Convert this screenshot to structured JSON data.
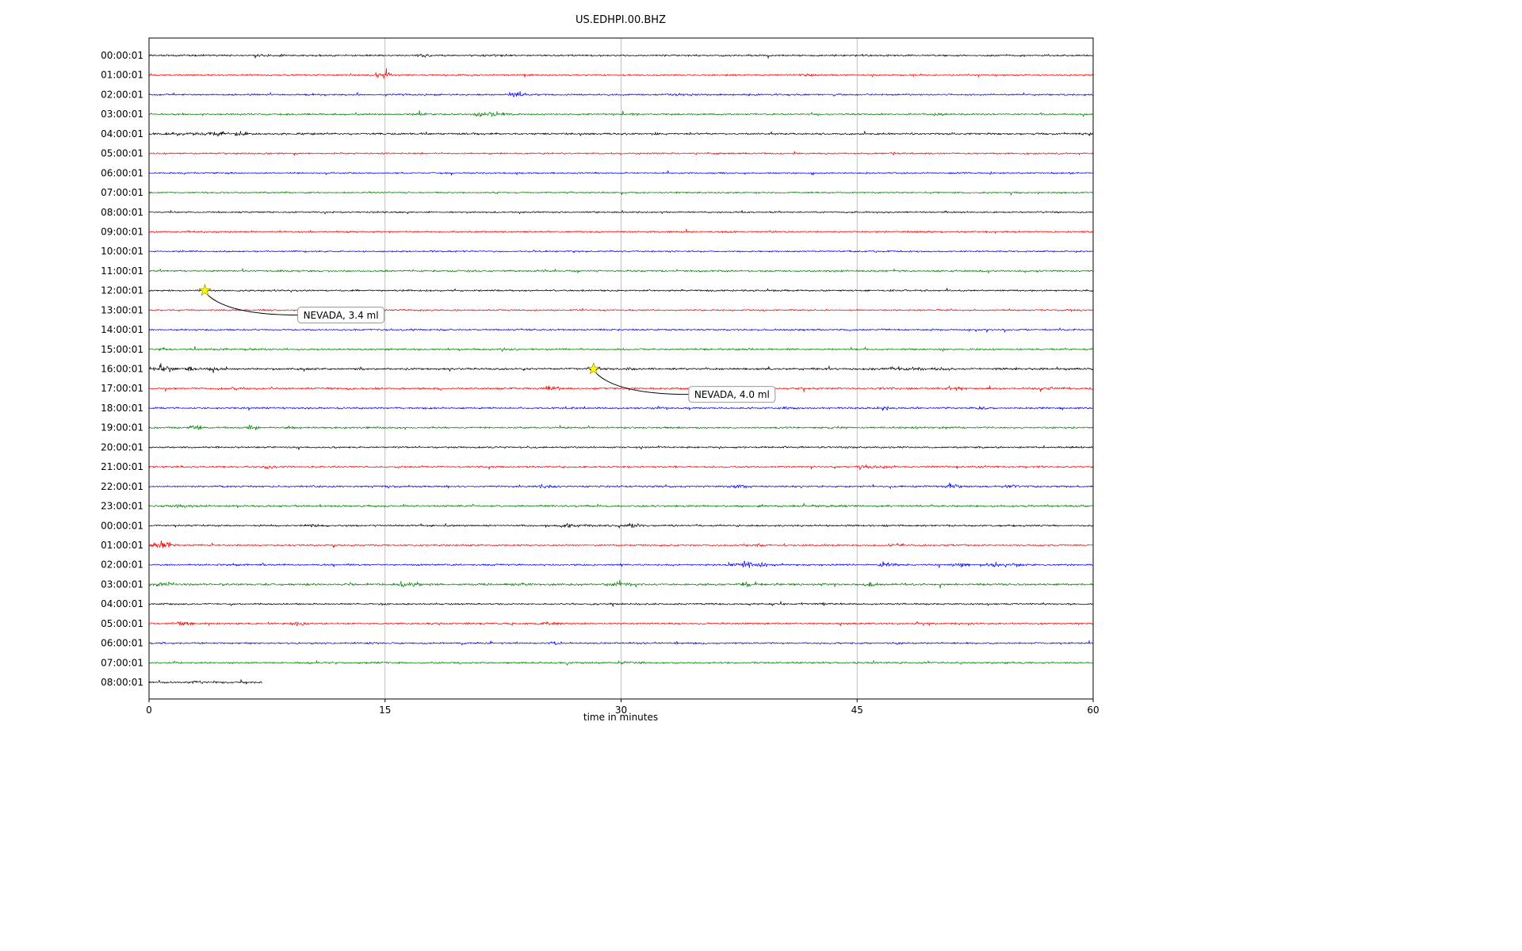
{
  "title": "US.EDHPI.00.BHZ",
  "xlabel": "time in minutes",
  "colors": {
    "grid": "#b0b0b0",
    "frame": "#000000",
    "star_fill": "#ffff00",
    "star_edge": "#808000",
    "annotation_box_border": "#999999",
    "annotation_box_fill": "#ffffff",
    "trace_cycle": [
      "#000000",
      "#ff0000",
      "#0000ff",
      "#008000"
    ]
  },
  "chart_data": {
    "type": "line",
    "subtype": "helicorder-dayplot",
    "title": "US.EDHPI.00.BHZ",
    "xlabel": "time in minutes",
    "x_range": [
      0,
      60
    ],
    "x_ticks": [
      "0",
      "15",
      "30",
      "45",
      "60"
    ],
    "x_tick_values": [
      0,
      15,
      30,
      45,
      60
    ],
    "grid": "vertical-only",
    "minutes_per_row": 60,
    "rows": [
      {
        "label": "00:00:01",
        "color": "#000000",
        "amp": 1.6,
        "events": [
          {
            "x": 7.5,
            "a": 1.2,
            "w": 0.6
          },
          {
            "x": 17.2,
            "a": 2.2,
            "w": 0.35
          },
          {
            "x": 22.5,
            "a": 1.0,
            "w": 0.5
          },
          {
            "x": 45.6,
            "a": 1.2,
            "w": 0.3
          }
        ]
      },
      {
        "label": "01:00:01",
        "color": "#ff0000",
        "amp": 1.5,
        "events": [
          {
            "x": 14.8,
            "a": 4.5,
            "w": 0.45
          },
          {
            "x": 41.8,
            "a": 1.5,
            "w": 0.25
          }
        ]
      },
      {
        "label": "02:00:01",
        "color": "#0000ff",
        "amp": 1.5,
        "events": [
          {
            "x": 23.3,
            "a": 4.0,
            "w": 0.4
          },
          {
            "x": 33.5,
            "a": 1.2,
            "w": 0.3
          }
        ]
      },
      {
        "label": "03:00:01",
        "color": "#008000",
        "amp": 1.5,
        "events": [
          {
            "x": 17.4,
            "a": 1.6,
            "w": 0.25
          },
          {
            "x": 21.6,
            "a": 3.8,
            "w": 0.6
          },
          {
            "x": 30.8,
            "a": 1.2,
            "w": 0.3
          },
          {
            "x": 50.2,
            "a": 1.8,
            "w": 0.25
          }
        ]
      },
      {
        "label": "04:00:01",
        "color": "#000000",
        "amp": 1.7,
        "events": [
          {
            "x": 2.5,
            "a": 1.5,
            "w": 1.2
          },
          {
            "x": 4.4,
            "a": 3.5,
            "w": 0.3
          },
          {
            "x": 5.9,
            "a": 3.2,
            "w": 0.3
          },
          {
            "x": 34.5,
            "a": 1.0,
            "w": 0.4
          }
        ]
      },
      {
        "label": "05:00:01",
        "color": "#ff0000",
        "amp": 1.4,
        "events": [
          {
            "x": 47.3,
            "a": 1.2,
            "w": 0.3
          }
        ]
      },
      {
        "label": "06:00:01",
        "color": "#0000ff",
        "amp": 1.4,
        "events": []
      },
      {
        "label": "07:00:01",
        "color": "#008000",
        "amp": 1.4,
        "events": []
      },
      {
        "label": "08:00:01",
        "color": "#000000",
        "amp": 1.4,
        "events": []
      },
      {
        "label": "09:00:01",
        "color": "#ff0000",
        "amp": 1.4,
        "events": [
          {
            "x": 37.0,
            "a": 1.2,
            "w": 0.3
          }
        ]
      },
      {
        "label": "10:00:01",
        "color": "#0000ff",
        "amp": 1.4,
        "events": []
      },
      {
        "label": "11:00:01",
        "color": "#008000",
        "amp": 1.5,
        "events": []
      },
      {
        "label": "12:00:01",
        "color": "#000000",
        "amp": 1.5,
        "events": [
          {
            "x": 3.6,
            "a": 1.2,
            "w": 0.3
          }
        ]
      },
      {
        "label": "13:00:01",
        "color": "#ff0000",
        "amp": 1.4,
        "events": [
          {
            "x": 10.5,
            "a": 1.0,
            "w": 0.3
          }
        ]
      },
      {
        "label": "14:00:01",
        "color": "#0000ff",
        "amp": 1.5,
        "events": []
      },
      {
        "label": "15:00:01",
        "color": "#008000",
        "amp": 1.6,
        "events": [
          {
            "x": 1.0,
            "a": 1.5,
            "w": 0.2
          }
        ]
      },
      {
        "label": "16:00:01",
        "color": "#000000",
        "amp": 1.8,
        "events": [
          {
            "x": 1.0,
            "a": 6.5,
            "w": 0.35
          },
          {
            "x": 2.6,
            "a": 2.5,
            "w": 0.3
          },
          {
            "x": 4.1,
            "a": 2.0,
            "w": 0.25
          },
          {
            "x": 28.3,
            "a": 1.8,
            "w": 0.3
          },
          {
            "x": 30.6,
            "a": 1.6,
            "w": 0.3
          },
          {
            "x": 47.8,
            "a": 2.0,
            "w": 0.8
          },
          {
            "x": 50.5,
            "a": 1.6,
            "w": 0.4
          }
        ]
      },
      {
        "label": "17:00:01",
        "color": "#ff0000",
        "amp": 1.7,
        "events": [
          {
            "x": 5.6,
            "a": 1.5,
            "w": 0.3
          },
          {
            "x": 25.6,
            "a": 2.5,
            "w": 0.35
          },
          {
            "x": 46.8,
            "a": 2.2,
            "w": 0.3
          },
          {
            "x": 51.3,
            "a": 2.2,
            "w": 0.3
          },
          {
            "x": 57.2,
            "a": 1.5,
            "w": 0.3
          }
        ]
      },
      {
        "label": "18:00:01",
        "color": "#0000ff",
        "amp": 1.6,
        "events": [
          {
            "x": 32.5,
            "a": 1.2,
            "w": 0.4
          },
          {
            "x": 40.8,
            "a": 2.0,
            "w": 0.3
          },
          {
            "x": 46.8,
            "a": 3.2,
            "w": 0.25
          },
          {
            "x": 53.2,
            "a": 2.2,
            "w": 0.3
          }
        ]
      },
      {
        "label": "19:00:01",
        "color": "#008000",
        "amp": 1.6,
        "events": [
          {
            "x": 3.1,
            "a": 3.2,
            "w": 0.4
          },
          {
            "x": 6.6,
            "a": 3.5,
            "w": 0.25
          },
          {
            "x": 9.1,
            "a": 2.2,
            "w": 0.3
          }
        ]
      },
      {
        "label": "20:00:01",
        "color": "#000000",
        "amp": 1.5,
        "events": [
          {
            "x": 31.2,
            "a": 1.8,
            "w": 0.2
          }
        ]
      },
      {
        "label": "21:00:01",
        "color": "#ff0000",
        "amp": 1.6,
        "events": [
          {
            "x": 7.6,
            "a": 1.5,
            "w": 0.3
          },
          {
            "x": 45.6,
            "a": 2.0,
            "w": 0.3
          },
          {
            "x": 46.9,
            "a": 1.8,
            "w": 0.25
          }
        ]
      },
      {
        "label": "22:00:01",
        "color": "#0000ff",
        "amp": 1.6,
        "events": [
          {
            "x": 15.2,
            "a": 1.2,
            "w": 0.3
          },
          {
            "x": 25.2,
            "a": 1.8,
            "w": 0.4
          },
          {
            "x": 37.6,
            "a": 2.2,
            "w": 0.4
          },
          {
            "x": 51.1,
            "a": 4.5,
            "w": 0.3
          },
          {
            "x": 54.8,
            "a": 1.8,
            "w": 0.4
          }
        ]
      },
      {
        "label": "23:00:01",
        "color": "#008000",
        "amp": 1.8,
        "events": [
          {
            "x": 2.0,
            "a": 1.2,
            "w": 0.5
          },
          {
            "x": 42.5,
            "a": 1.0,
            "w": 0.4
          }
        ]
      },
      {
        "label": "00:00:01",
        "color": "#000000",
        "amp": 1.6,
        "events": [
          {
            "x": 10.4,
            "a": 2.0,
            "w": 0.3
          },
          {
            "x": 26.6,
            "a": 2.5,
            "w": 0.35
          },
          {
            "x": 28.2,
            "a": 1.5,
            "w": 0.3
          },
          {
            "x": 30.7,
            "a": 3.0,
            "w": 0.45
          }
        ]
      },
      {
        "label": "01:00:01",
        "color": "#ff0000",
        "amp": 1.5,
        "events": [
          {
            "x": 0.9,
            "a": 5.0,
            "w": 0.5
          },
          {
            "x": 38.5,
            "a": 1.2,
            "w": 0.3
          },
          {
            "x": 47.2,
            "a": 1.2,
            "w": 0.3
          }
        ]
      },
      {
        "label": "02:00:01",
        "color": "#0000ff",
        "amp": 1.6,
        "events": [
          {
            "x": 37.9,
            "a": 5.0,
            "w": 0.45
          },
          {
            "x": 39.0,
            "a": 2.0,
            "w": 0.3
          },
          {
            "x": 46.9,
            "a": 5.0,
            "w": 0.3
          },
          {
            "x": 51.6,
            "a": 3.0,
            "w": 0.35
          },
          {
            "x": 53.6,
            "a": 2.8,
            "w": 0.35
          },
          {
            "x": 55.2,
            "a": 2.2,
            "w": 0.3
          }
        ]
      },
      {
        "label": "03:00:01",
        "color": "#008000",
        "amp": 1.9,
        "events": [
          {
            "x": 1.0,
            "a": 2.5,
            "w": 0.4
          },
          {
            "x": 16.0,
            "a": 3.2,
            "w": 0.3
          },
          {
            "x": 17.0,
            "a": 2.0,
            "w": 0.3
          },
          {
            "x": 23.6,
            "a": 2.2,
            "w": 0.3
          },
          {
            "x": 30.0,
            "a": 1.2,
            "w": 0.5
          },
          {
            "x": 37.9,
            "a": 3.0,
            "w": 0.3
          },
          {
            "x": 45.9,
            "a": 3.0,
            "w": 0.25
          }
        ]
      },
      {
        "label": "04:00:01",
        "color": "#000000",
        "amp": 1.5,
        "events": [
          {
            "x": 15.0,
            "a": 1.2,
            "w": 0.2
          },
          {
            "x": 42.8,
            "a": 1.5,
            "w": 0.2
          }
        ]
      },
      {
        "label": "05:00:01",
        "color": "#ff0000",
        "amp": 1.6,
        "events": [
          {
            "x": 2.1,
            "a": 3.2,
            "w": 0.4
          },
          {
            "x": 9.6,
            "a": 2.8,
            "w": 0.3
          },
          {
            "x": 25.6,
            "a": 2.8,
            "w": 0.35
          }
        ]
      },
      {
        "label": "06:00:01",
        "color": "#0000ff",
        "amp": 1.5,
        "events": [
          {
            "x": 25.8,
            "a": 1.5,
            "w": 0.3
          },
          {
            "x": 47.5,
            "a": 1.0,
            "w": 0.3
          }
        ]
      },
      {
        "label": "07:00:01",
        "color": "#008000",
        "amp": 1.6,
        "events": [
          {
            "x": 30.0,
            "a": 0.8,
            "w": 1.0
          }
        ]
      },
      {
        "label": "08:00:01",
        "color": "#000000",
        "amp": 1.6,
        "xmax": 7.2,
        "events": [
          {
            "x": 3.5,
            "a": 1.0,
            "w": 0.8
          }
        ]
      }
    ],
    "annotations": [
      {
        "text": "NEVADA, 3.4 ml",
        "star": {
          "row": 12,
          "x": 3.55
        },
        "box": {
          "row": 13.25,
          "x": 9.45
        }
      },
      {
        "text": "NEVADA, 4.0 ml",
        "star": {
          "row": 16,
          "x": 28.25
        },
        "box": {
          "row": 17.3,
          "x": 34.3
        }
      }
    ]
  }
}
